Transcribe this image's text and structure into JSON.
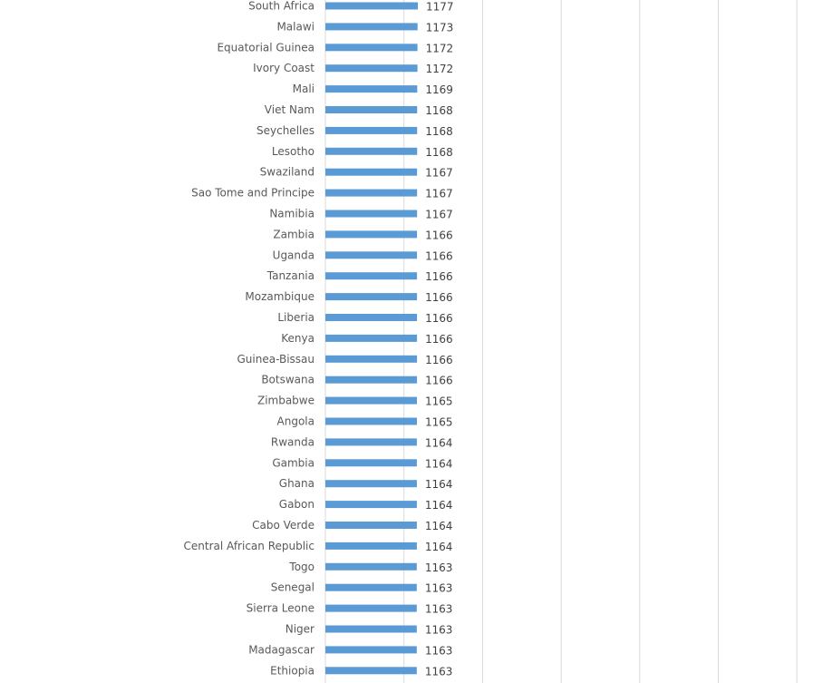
{
  "colors": {
    "bar": "#5b9bd5",
    "grid": "#d9d9d9",
    "label": "#595959",
    "value": "#404040"
  },
  "chart_data": {
    "type": "bar",
    "orientation": "horizontal",
    "grid": true,
    "legend": "none",
    "title": "",
    "xlabel": "",
    "ylabel": "",
    "categories": [
      "South Africa",
      "Malawi",
      "Equatorial Guinea",
      "Ivory Coast",
      "Mali",
      "Viet Nam",
      "Seychelles",
      "Lesotho",
      "Swaziland",
      "Sao Tome and Principe",
      "Namibia",
      "Zambia",
      "Uganda",
      "Tanzania",
      "Mozambique",
      "Liberia",
      "Kenya",
      "Guinea-Bissau",
      "Botswana",
      "Zimbabwe",
      "Angola",
      "Rwanda",
      "Gambia",
      "Ghana",
      "Gabon",
      "Cabo Verde",
      "Central African Republic",
      "Togo",
      "Senegal",
      "Sierra Leone",
      "Niger",
      "Madagascar",
      "Ethiopia"
    ],
    "values": [
      1177,
      1173,
      1172,
      1172,
      1169,
      1168,
      1168,
      1168,
      1167,
      1167,
      1167,
      1166,
      1166,
      1166,
      1166,
      1166,
      1166,
      1166,
      1166,
      1165,
      1165,
      1164,
      1164,
      1164,
      1164,
      1164,
      1164,
      1163,
      1163,
      1163,
      1163,
      1163,
      1163
    ]
  }
}
